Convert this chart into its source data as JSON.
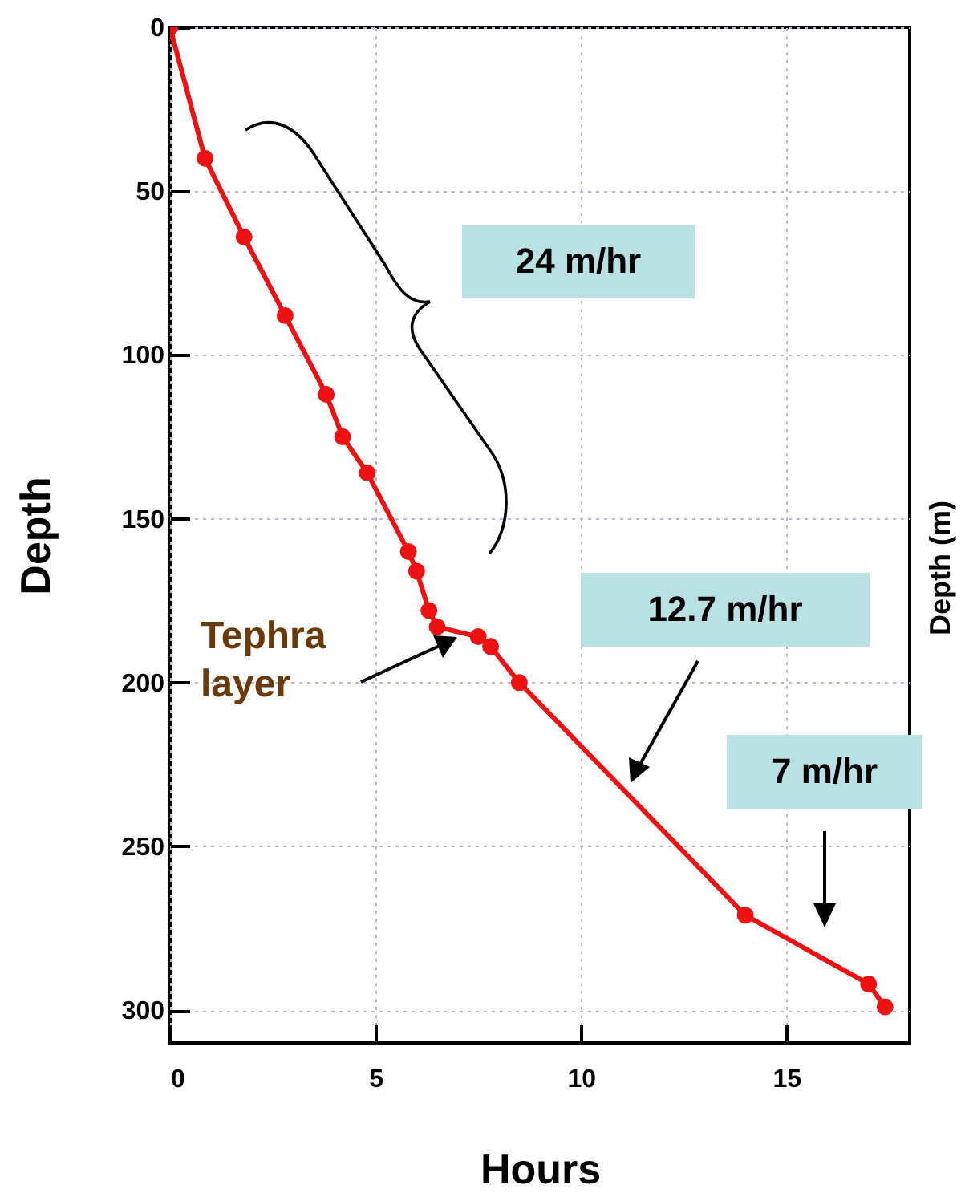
{
  "chart_data": {
    "type": "line",
    "xlabel": "Hours",
    "ylabel": "Depth",
    "x": [
      0,
      0.85,
      1.8,
      2.8,
      3.8,
      4.2,
      4.8,
      5.8,
      6.0,
      6.3,
      6.5,
      7.5,
      7.8,
      8.5,
      14.0,
      17.0,
      17.4
    ],
    "series": [
      {
        "color": "#ee1111",
        "values": [
          0,
          40,
          64,
          88,
          112,
          125,
          136,
          160,
          166,
          178,
          183,
          186,
          189,
          200,
          271,
          292,
          299
        ]
      }
    ],
    "xlim": [
      0,
      18
    ],
    "xticks": [
      0,
      5,
      10,
      15
    ],
    "ylim": [
      310,
      0
    ],
    "yticks": [
      0,
      50,
      100,
      150,
      200,
      250,
      300
    ],
    "grid": true,
    "marker": "circle",
    "line_style": "solid",
    "annotations": [
      "24 m/hr",
      "12.7 m/hr",
      "7 m/hr",
      "Tephra layer",
      "Depth (m)"
    ]
  }
}
